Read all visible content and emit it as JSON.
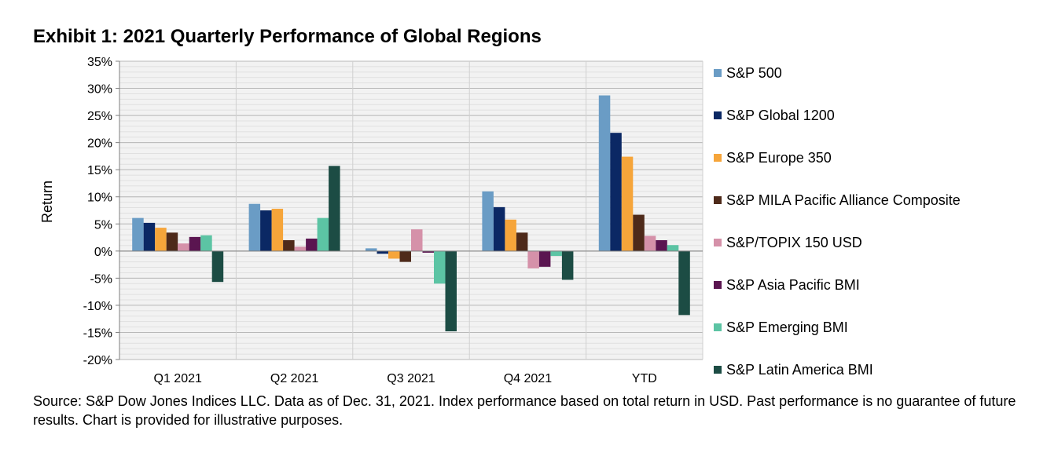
{
  "title": "Exhibit 1: 2021 Quarterly Performance of Global Regions",
  "source_note": "Source: S&P Dow Jones Indices LLC. Data as of Dec. 31, 2021. Index performance based on total return in USD. Past performance is no guarantee of future results. Chart is provided for illustrative purposes.",
  "chart_data": {
    "type": "bar",
    "categories": [
      "Q1 2021",
      "Q2 2021",
      "Q3 2021",
      "Q4 2021",
      "YTD"
    ],
    "ylabel": "Return",
    "xlabel": "",
    "ylim": [
      -0.2,
      0.35
    ],
    "yticks": [
      0.35,
      0.3,
      0.25,
      0.2,
      0.15,
      0.1,
      0.05,
      0.0,
      -0.05,
      -0.1,
      -0.15,
      -0.2
    ],
    "ytick_labels": [
      "35%",
      "30%",
      "25%",
      "20%",
      "15%",
      "10%",
      "5%",
      "0%",
      "-5%",
      "-10%",
      "-15%",
      "-20%"
    ],
    "grid": true,
    "legend_position": "right",
    "series": [
      {
        "name": "S&P 500",
        "color": "#6A9CC5",
        "values": [
          0.061,
          0.087,
          0.005,
          0.11,
          0.287
        ]
      },
      {
        "name": "S&P Global 1200",
        "color": "#0B2864",
        "values": [
          0.052,
          0.075,
          -0.005,
          0.081,
          0.218
        ]
      },
      {
        "name": "S&P Europe 350",
        "color": "#F6A53A",
        "values": [
          0.043,
          0.078,
          -0.014,
          0.058,
          0.174
        ]
      },
      {
        "name": "S&P MILA Pacific Alliance Composite",
        "color": "#4E2A1A",
        "values": [
          0.034,
          0.02,
          -0.02,
          0.034,
          0.067
        ]
      },
      {
        "name": "S&P/TOPIX 150 USD",
        "color": "#D591A9",
        "values": [
          0.014,
          0.008,
          0.04,
          -0.032,
          0.028
        ]
      },
      {
        "name": "S&P Asia Pacific BMI",
        "color": "#5A1550",
        "values": [
          0.026,
          0.023,
          -0.003,
          -0.029,
          0.02
        ]
      },
      {
        "name": "S&P Emerging BMI",
        "color": "#5CC4A4",
        "values": [
          0.029,
          0.061,
          -0.06,
          -0.009,
          0.011
        ]
      },
      {
        "name": "S&P Latin America BMI",
        "color": "#1C4C44",
        "values": [
          -0.057,
          0.157,
          -0.148,
          -0.053,
          -0.118
        ]
      }
    ]
  }
}
